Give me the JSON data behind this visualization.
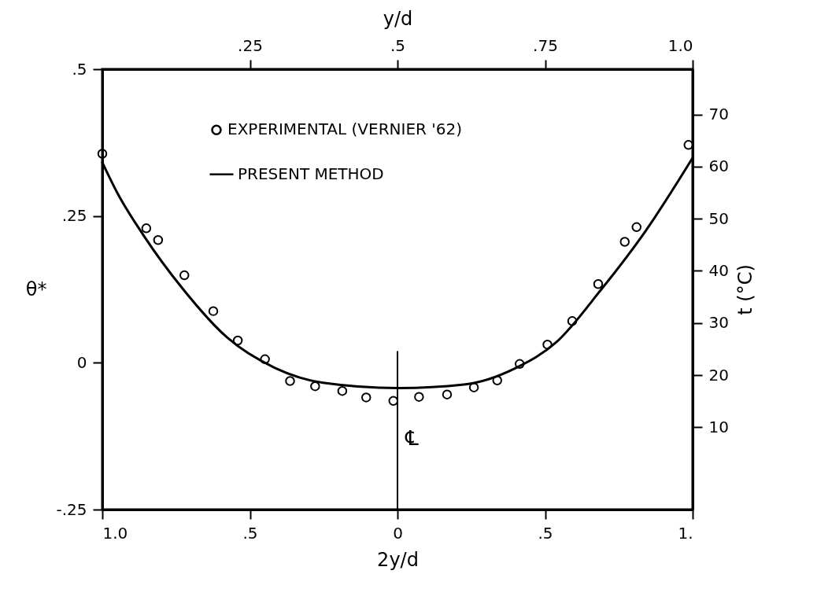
{
  "chart_data": {
    "type": "scatter",
    "xlabel": "2y/d",
    "ylabel": "θ*",
    "y2label": "t (°C)",
    "x2label": "y/d",
    "xlim": [
      -1,
      1
    ],
    "xticks": [
      {
        "value": -1,
        "label": "1.0"
      },
      {
        "value": -0.5,
        "label": ".5"
      },
      0,
      {
        "value": 0.5,
        "label": ".5"
      },
      {
        "value": 1,
        "label": "1."
      }
    ],
    "ylim": [
      -0.25,
      0.5
    ],
    "yticks": [
      {
        "value": -0.25,
        "label": "-.25"
      },
      0,
      {
        "value": 0.25,
        "label": ".25"
      },
      {
        "value": 0.5,
        "label": ".5"
      }
    ],
    "x2lim": [
      0,
      1
    ],
    "x2ticks": [
      {
        "value": 0.25,
        "label": ".25"
      },
      {
        "value": 0.5,
        "label": ".5"
      },
      {
        "value": 0.75,
        "label": ".75"
      },
      {
        "value": 1,
        "label": "1.0"
      }
    ],
    "y2lim": [
      -5.8,
      78.7
    ],
    "y2ticks": [
      10,
      20,
      30,
      40,
      50,
      60,
      70
    ],
    "legend": "top",
    "series": [
      {
        "name": "EXPERIMENTAL (VERNIER '62)",
        "marker": "circle",
        "color": "#000000",
        "x": [
          -1.0,
          -0.851,
          -0.811,
          -0.722,
          -0.624,
          -0.541,
          -0.449,
          -0.364,
          -0.279,
          -0.187,
          -0.106,
          -0.014,
          0.073,
          0.168,
          0.259,
          0.338,
          0.414,
          0.508,
          0.592,
          0.68,
          0.77,
          0.81,
          0.986
        ],
        "values": [
          0.356,
          0.229,
          0.209,
          0.149,
          0.088,
          0.038,
          0.006,
          -0.031,
          -0.04,
          -0.048,
          -0.059,
          -0.065,
          -0.058,
          -0.054,
          -0.042,
          -0.03,
          -0.002,
          0.031,
          0.071,
          0.134,
          0.206,
          0.231,
          0.371
        ]
      },
      {
        "type": "line",
        "name": "PRESENT METHOD",
        "color": "#000000",
        "x": [
          -1.0,
          -0.95,
          -0.859,
          -0.729,
          -0.577,
          -0.414,
          -0.252,
          0,
          0.225,
          0.4,
          0.538,
          0.689,
          0.84,
          1.0
        ],
        "values": [
          0.341,
          0.29,
          0.216,
          0.127,
          0.043,
          -0.009,
          -0.034,
          -0.043,
          -0.037,
          -0.009,
          0.035,
          0.124,
          0.224,
          0.349
        ]
      }
    ],
    "ref_lines": [
      {
        "axis": "x",
        "value": 0,
        "label": "℄"
      }
    ]
  }
}
